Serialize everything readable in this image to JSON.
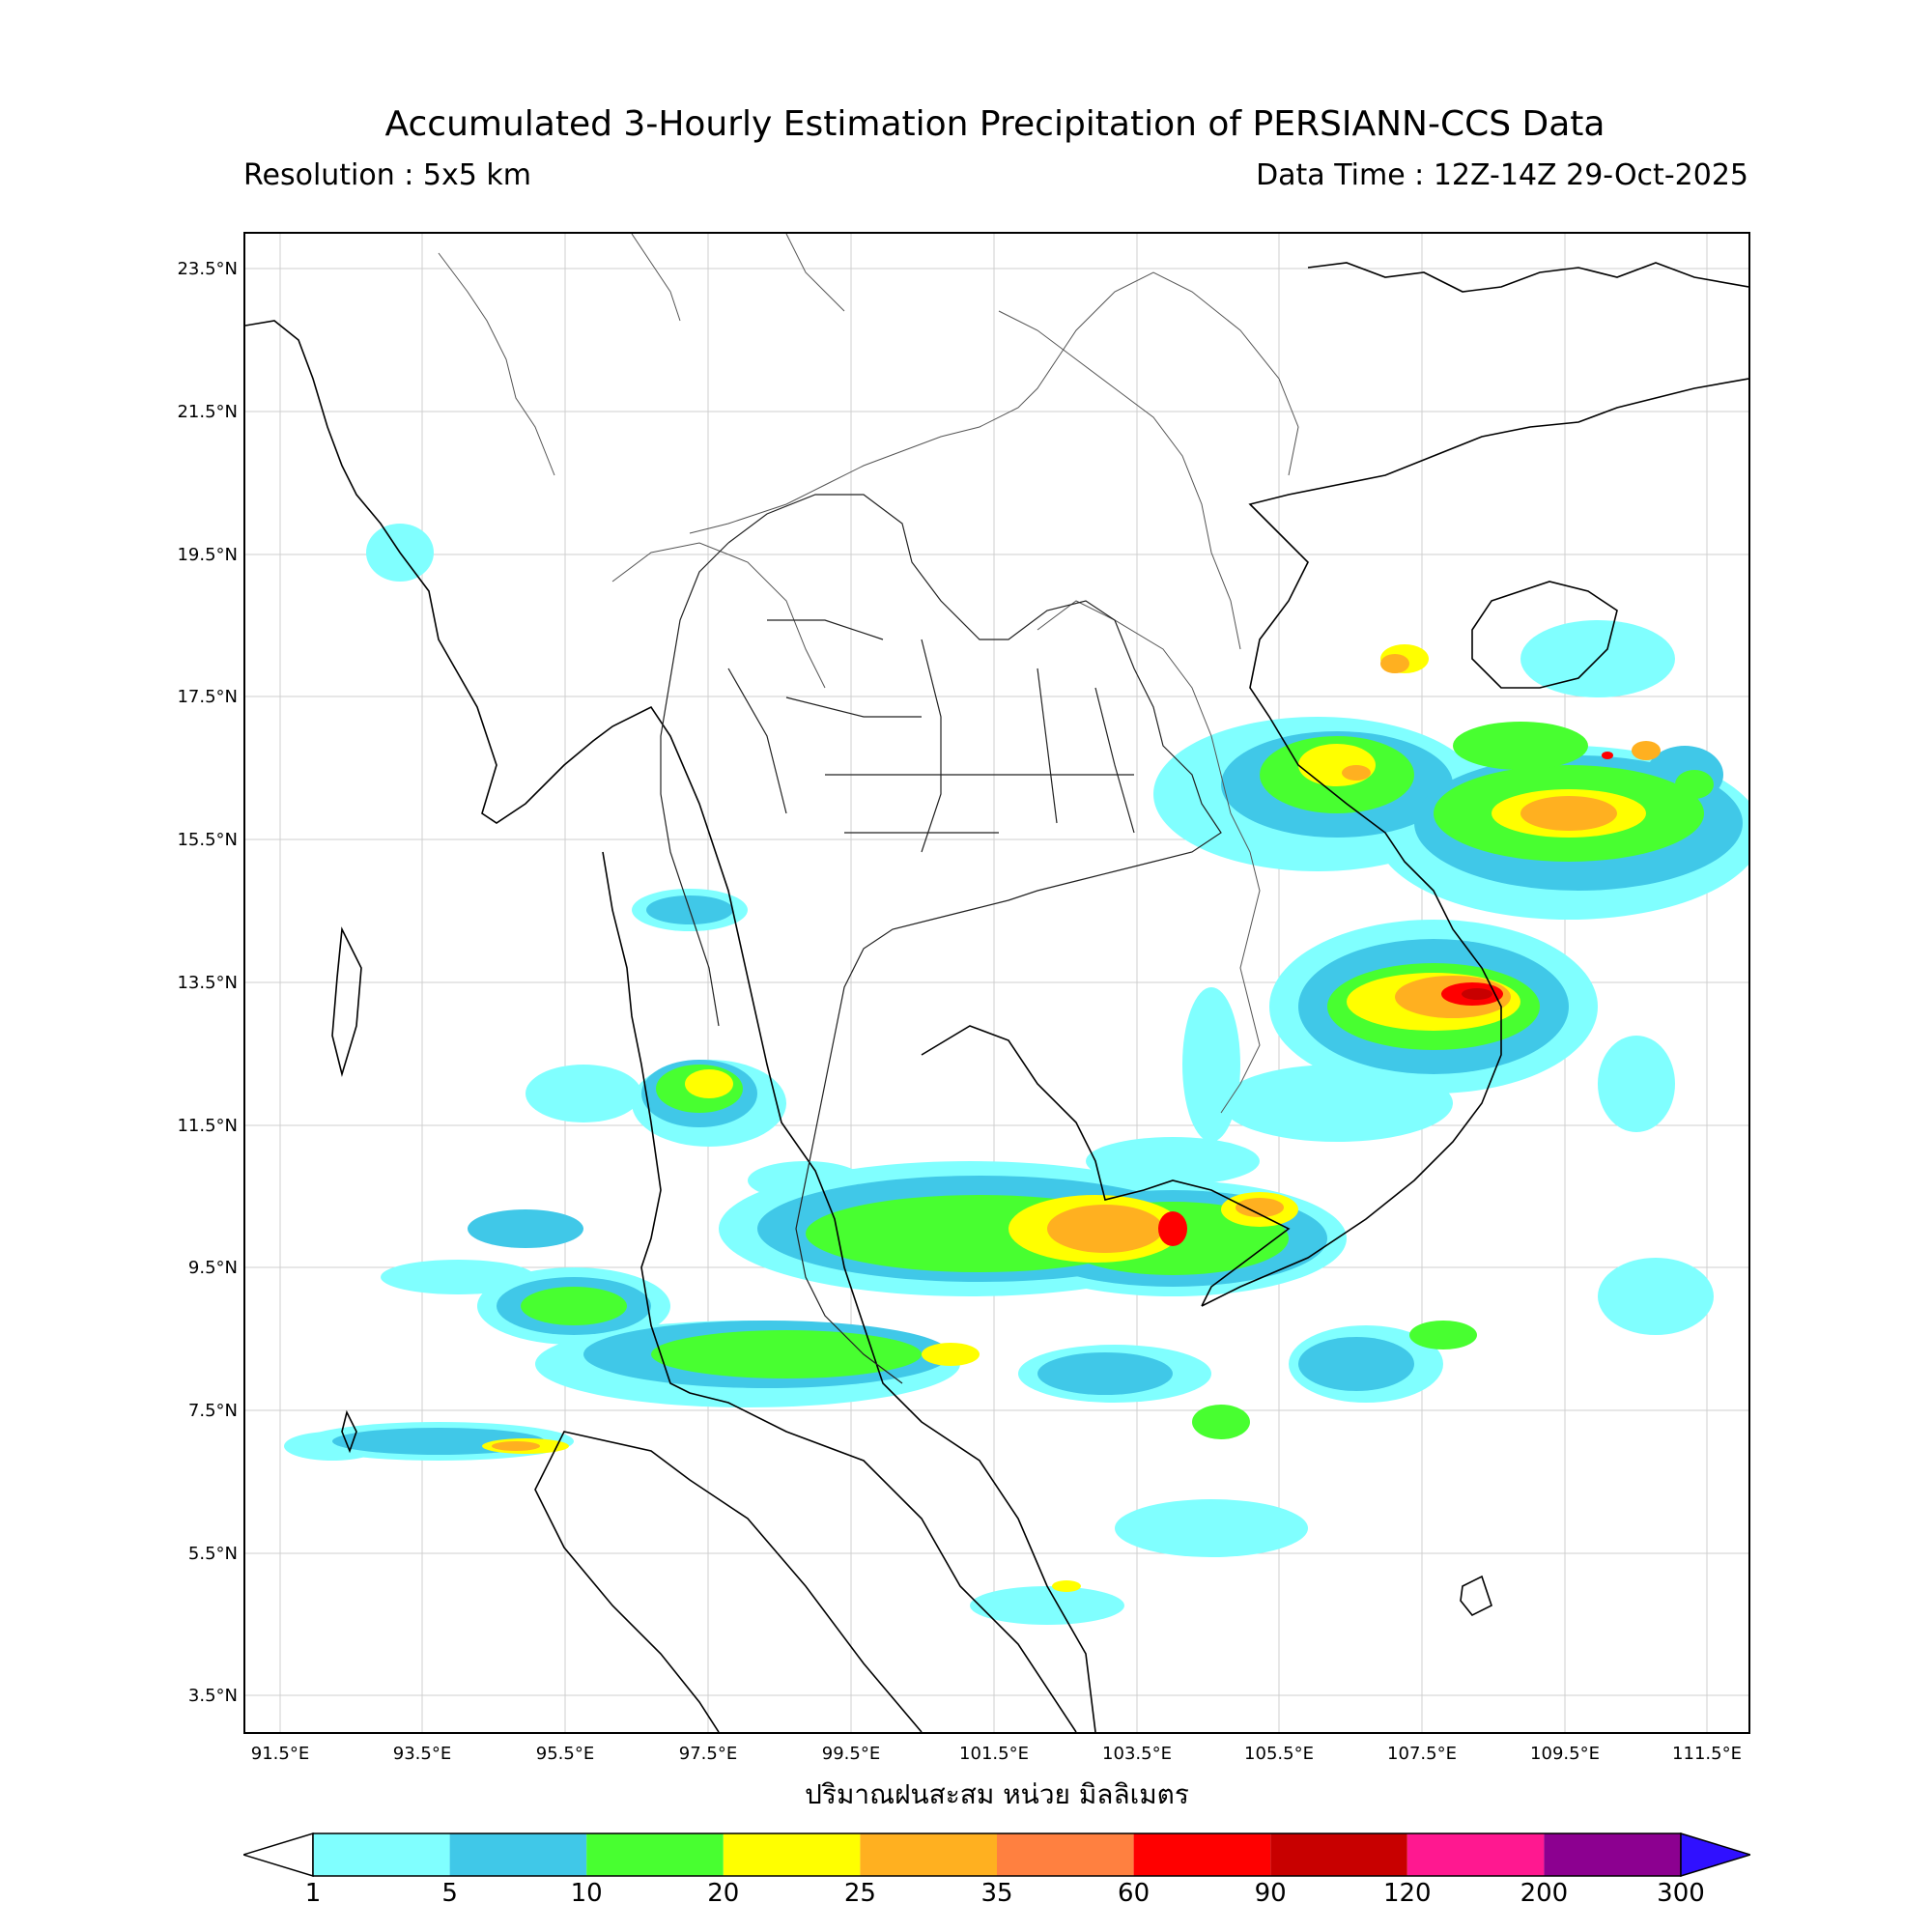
{
  "header": {
    "title": "Accumulated 3-Hourly Estimation Precipitation of PERSIANN-CCS Data",
    "resolution": "Resolution : 5x5 km",
    "data_time": "Data Time : 12Z-14Z 29-Oct-2025"
  },
  "axes": {
    "lat_labels": [
      "23.5°N",
      "21.5°N",
      "19.5°N",
      "17.5°N",
      "15.5°N",
      "13.5°N",
      "11.5°N",
      "9.5°N",
      "7.5°N",
      "5.5°N",
      "3.5°N"
    ],
    "lon_labels": [
      "91.5°E",
      "93.5°E",
      "95.5°E",
      "97.5°E",
      "99.5°E",
      "101.5°E",
      "103.5°E",
      "105.5°E",
      "107.5°E",
      "109.5°E",
      "111.5°E"
    ],
    "x_caption": "ปริมาณฝนสะสม หน่วย มิลลิเมตร"
  },
  "colorbar": {
    "ticks": [
      "1",
      "5",
      "10",
      "20",
      "25",
      "35",
      "60",
      "90",
      "120",
      "200",
      "300"
    ],
    "colors": [
      "#80ffff",
      "#40c8e8",
      "#48ff30",
      "#ffff00",
      "#ffb020",
      "#ff8040",
      "#ff0000",
      "#c80000",
      "#ff1890",
      "#8c0090"
    ],
    "over_color": "#3010ff",
    "under_color": "#ffffff"
  }
}
